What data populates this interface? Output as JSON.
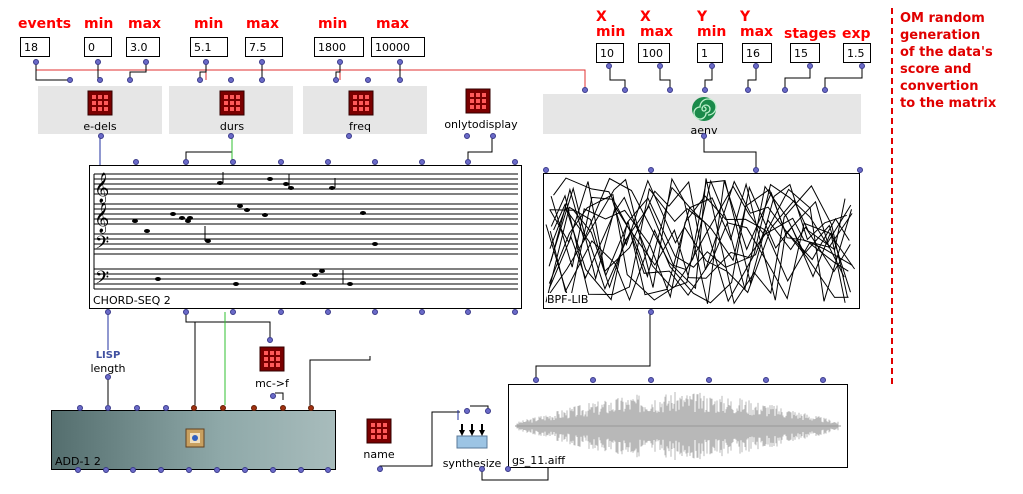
{
  "inputs": [
    {
      "label": "events",
      "value": "18"
    },
    {
      "label": "min",
      "value": "0"
    },
    {
      "label": "max",
      "value": "3.0"
    },
    {
      "label": "min",
      "value": "5.1"
    },
    {
      "label": "max",
      "value": "7.5"
    },
    {
      "label": "min",
      "value": "1800"
    },
    {
      "label": "max",
      "value": "10000"
    }
  ],
  "env_inputs": [
    {
      "label": "X\nmin",
      "value": "10"
    },
    {
      "label": "X\nmax",
      "value": "100"
    },
    {
      "label": "Y\nmin",
      "value": "1"
    },
    {
      "label": "Y\nmax",
      "value": "16"
    },
    {
      "label": "stages",
      "value": "15"
    },
    {
      "label": "exp",
      "value": "1.5"
    }
  ],
  "boxes": {
    "edels": "e-dels",
    "durs": "durs",
    "freq": "freq",
    "onlytodisplay": "onlytodisplay",
    "aenv": "aenv",
    "length_top": "LISP",
    "length": "length",
    "mcf": "mc->f",
    "name": "name",
    "synthesize": "synthesize"
  },
  "panels": {
    "chordseq": "CHORD-SEQ 2",
    "bpf": "BPF-LIB",
    "add": "ADD-1 2",
    "sound": "gs_11.aiff"
  },
  "comment": [
    "OM random",
    "generation",
    "of the data's",
    "score and",
    "convertion",
    "to the matrix"
  ],
  "colors": {
    "label_red": "#ff0000",
    "port_blue": "#6a6ac8",
    "port_red": "#a03010",
    "box_gray": "#e6e6e6"
  }
}
